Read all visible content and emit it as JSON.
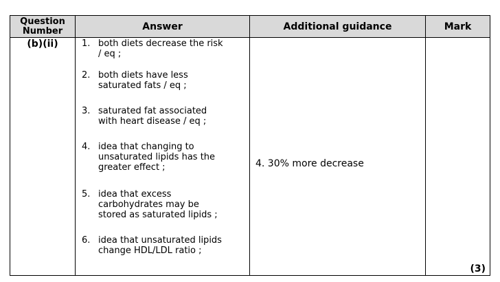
{
  "table": {
    "headers": {
      "question_line1": "Question",
      "question_line2": "Number",
      "answer": "Answer",
      "guidance": "Additional guidance",
      "mark": "Mark"
    },
    "row": {
      "question_number": "(b)(ii)",
      "answers": [
        {
          "num": "1.",
          "text_lines": [
            "both diets decrease the risk",
            "/ eq ;"
          ]
        },
        {
          "num": "2.",
          "text_lines": [
            "both diets have less",
            "saturated fats / eq ;"
          ]
        },
        {
          "num": "3.",
          "text_lines": [
            "saturated fat associated",
            "with heart disease / eq ;"
          ]
        },
        {
          "num": "4.",
          "text_lines": [
            "idea that changing to",
            "unsaturated lipids has the",
            "greater effect ;"
          ]
        },
        {
          "num": "5.",
          "text_lines": [
            "idea that excess",
            "carbohydrates may be",
            "stored as saturated lipids ;"
          ]
        },
        {
          "num": "6.",
          "text_lines": [
            "idea that unsaturated lipids",
            "change HDL/LDL ratio ;"
          ]
        }
      ],
      "guidance": "4. 30% more decrease",
      "mark": "(3)"
    }
  }
}
